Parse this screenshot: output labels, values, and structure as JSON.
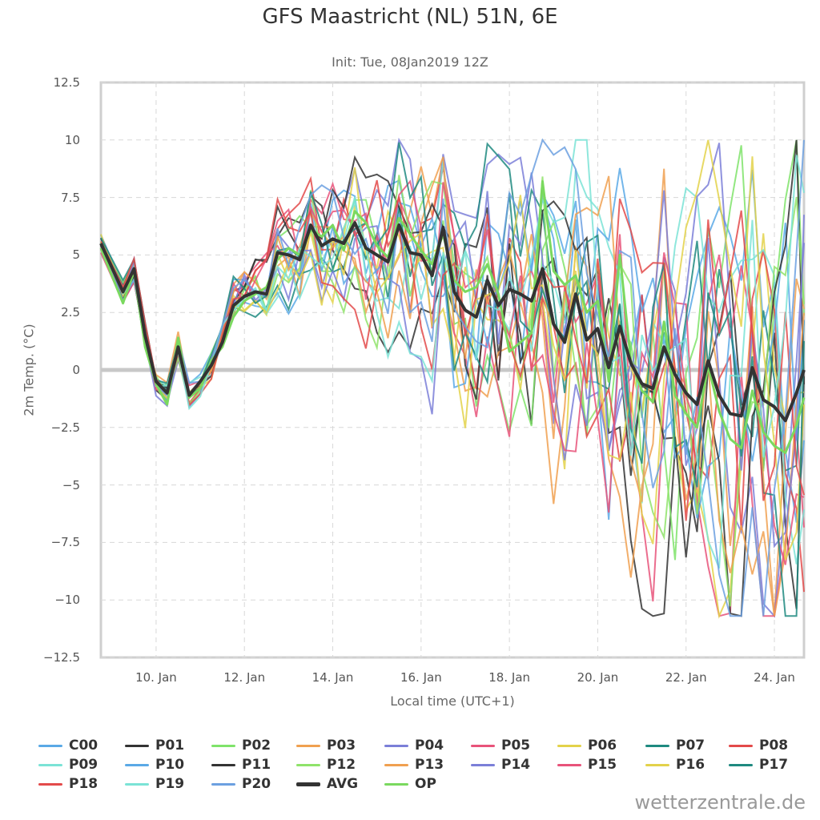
{
  "credit": "wetterzentrale.de",
  "chart_data": {
    "type": "line",
    "title": "GFS Maastricht (NL) 51N, 6E",
    "subtitle": "Init: Tue, 08Jan2019 12Z",
    "xlabel": "Local time (UTC+1)",
    "ylabel": "2m Temp. (°C)",
    "xlim": [
      8.75,
      24.67
    ],
    "ylim": [
      -12.5,
      12.5
    ],
    "yticks": [
      "12.5",
      "10",
      "7.5",
      "5",
      "2.5",
      "0",
      "−2.5",
      "−5",
      "−7.5",
      "−10",
      "−12.5"
    ],
    "ytick_values": [
      12.5,
      10,
      7.5,
      5,
      2.5,
      0,
      -2.5,
      -5,
      -7.5,
      -10,
      -12.5
    ],
    "xticks": [
      "10. Jan",
      "12. Jan",
      "14. Jan",
      "16. Jan",
      "18. Jan",
      "20. Jan",
      "22. Jan",
      "24. Jan"
    ],
    "xtick_values": [
      10,
      12,
      14,
      16,
      18,
      20,
      22,
      24
    ],
    "grid": true,
    "legend_position": "bottom",
    "series": [
      {
        "name": "C00",
        "color": "#5aa9e6"
      },
      {
        "name": "P01",
        "color": "#333333"
      },
      {
        "name": "P02",
        "color": "#7fe36a"
      },
      {
        "name": "P03",
        "color": "#f0a050"
      },
      {
        "name": "P04",
        "color": "#7b7fd8"
      },
      {
        "name": "P05",
        "color": "#e8537a"
      },
      {
        "name": "P06",
        "color": "#e3d24a"
      },
      {
        "name": "P07",
        "color": "#1f8a80"
      },
      {
        "name": "P08",
        "color": "#e34a4a"
      },
      {
        "name": "P09",
        "color": "#7be3d6"
      },
      {
        "name": "P10",
        "color": "#5aa9e6"
      },
      {
        "name": "P11",
        "color": "#333333"
      },
      {
        "name": "P12",
        "color": "#8fe36a"
      },
      {
        "name": "P13",
        "color": "#f0a050"
      },
      {
        "name": "P14",
        "color": "#7b7fd8"
      },
      {
        "name": "P15",
        "color": "#e8537a"
      },
      {
        "name": "P16",
        "color": "#e3d24a"
      },
      {
        "name": "P17",
        "color": "#1f8a80"
      },
      {
        "name": "P18",
        "color": "#e34a4a"
      },
      {
        "name": "P19",
        "color": "#7be3d6"
      },
      {
        "name": "P20",
        "color": "#6ca0e0"
      },
      {
        "name": "AVG",
        "color": "#333333",
        "bold": true,
        "x": [
          8.75,
          9.25,
          9.5,
          9.75,
          10.0,
          10.25,
          10.5,
          10.75,
          11.0,
          11.25,
          11.5,
          11.75,
          12.0,
          12.25,
          12.5,
          12.75,
          13.0,
          13.25,
          13.5,
          13.75,
          14.0,
          14.25,
          14.5,
          14.75,
          15.0,
          15.25,
          15.5,
          15.75,
          16.0,
          16.25,
          16.5,
          16.75,
          17.0,
          17.25,
          17.5,
          17.75,
          18.0,
          18.25,
          18.5,
          18.75,
          19.0,
          19.25,
          19.5,
          19.75,
          20.0,
          20.25,
          20.5,
          20.75,
          21.0,
          21.25,
          21.5,
          21.75,
          22.0,
          22.25,
          22.5,
          22.75,
          23.0,
          23.25,
          23.5,
          23.75,
          24.0,
          24.25,
          24.5,
          24.67
        ],
        "values": [
          5.5,
          3.4,
          4.4,
          1.5,
          -0.5,
          -1.0,
          1.0,
          -1.1,
          -0.5,
          0.2,
          1.2,
          2.8,
          3.2,
          3.4,
          3.3,
          5.1,
          5.0,
          4.8,
          6.3,
          5.4,
          5.7,
          5.5,
          6.4,
          5.3,
          5.0,
          4.7,
          6.3,
          5.1,
          5.0,
          4.1,
          6.2,
          3.4,
          2.6,
          2.3,
          3.9,
          2.8,
          3.5,
          3.3,
          3.0,
          4.4,
          2.0,
          1.2,
          3.3,
          1.3,
          1.8,
          0.1,
          1.9,
          0.3,
          -0.6,
          -0.8,
          1.0,
          -0.2,
          -1.0,
          -1.5,
          0.4,
          -1.1,
          -1.9,
          -2.0,
          0.1,
          -1.3,
          -1.6,
          -2.2,
          -1.0,
          0.0
        ]
      },
      {
        "name": "OP",
        "color": "#7ad95f",
        "x": [
          8.75,
          9.25,
          9.5,
          9.75,
          10.0,
          10.25,
          10.5,
          10.75,
          11.0,
          11.25,
          11.5,
          11.75,
          12.0,
          12.25,
          12.5,
          12.75,
          13.0,
          13.25,
          13.5,
          13.75,
          14.0,
          14.25,
          14.5,
          14.75,
          15.0,
          15.25,
          15.5,
          15.75,
          16.0,
          16.25,
          16.5,
          16.75,
          17.0,
          17.25,
          17.5,
          17.75,
          18.0,
          18.25,
          18.5,
          18.75,
          19.0,
          19.25,
          19.5,
          19.75,
          20.0,
          20.25,
          20.5,
          20.75,
          21.0,
          21.25,
          21.5,
          21.75,
          22.0,
          22.25,
          22.5,
          22.75,
          23.0,
          23.25,
          23.5,
          23.75,
          24.0,
          24.25,
          24.5,
          24.67
        ],
        "values": [
          5.3,
          2.9,
          4.3,
          1.0,
          -0.6,
          -1.5,
          1.4,
          -1.2,
          -0.8,
          0.4,
          1.0,
          2.3,
          3.0,
          3.3,
          3.6,
          4.8,
          5.3,
          5.0,
          6.1,
          5.8,
          6.3,
          5.2,
          6.9,
          6.4,
          5.4,
          4.9,
          6.6,
          5.9,
          5.2,
          4.6,
          5.9,
          3.9,
          3.4,
          3.6,
          4.6,
          3.3,
          0.8,
          1.2,
          1.6,
          8.2,
          4.3,
          3.7,
          4.1,
          2.5,
          3.0,
          -0.5,
          5.0,
          0.4,
          -0.9,
          -1.4,
          2.1,
          -1.1,
          -1.9,
          -2.5,
          0.2,
          -1.8,
          -3.0,
          -3.4,
          -0.9,
          -2.7,
          -3.3,
          -3.6,
          -2.4,
          -1.2
        ]
      }
    ]
  }
}
